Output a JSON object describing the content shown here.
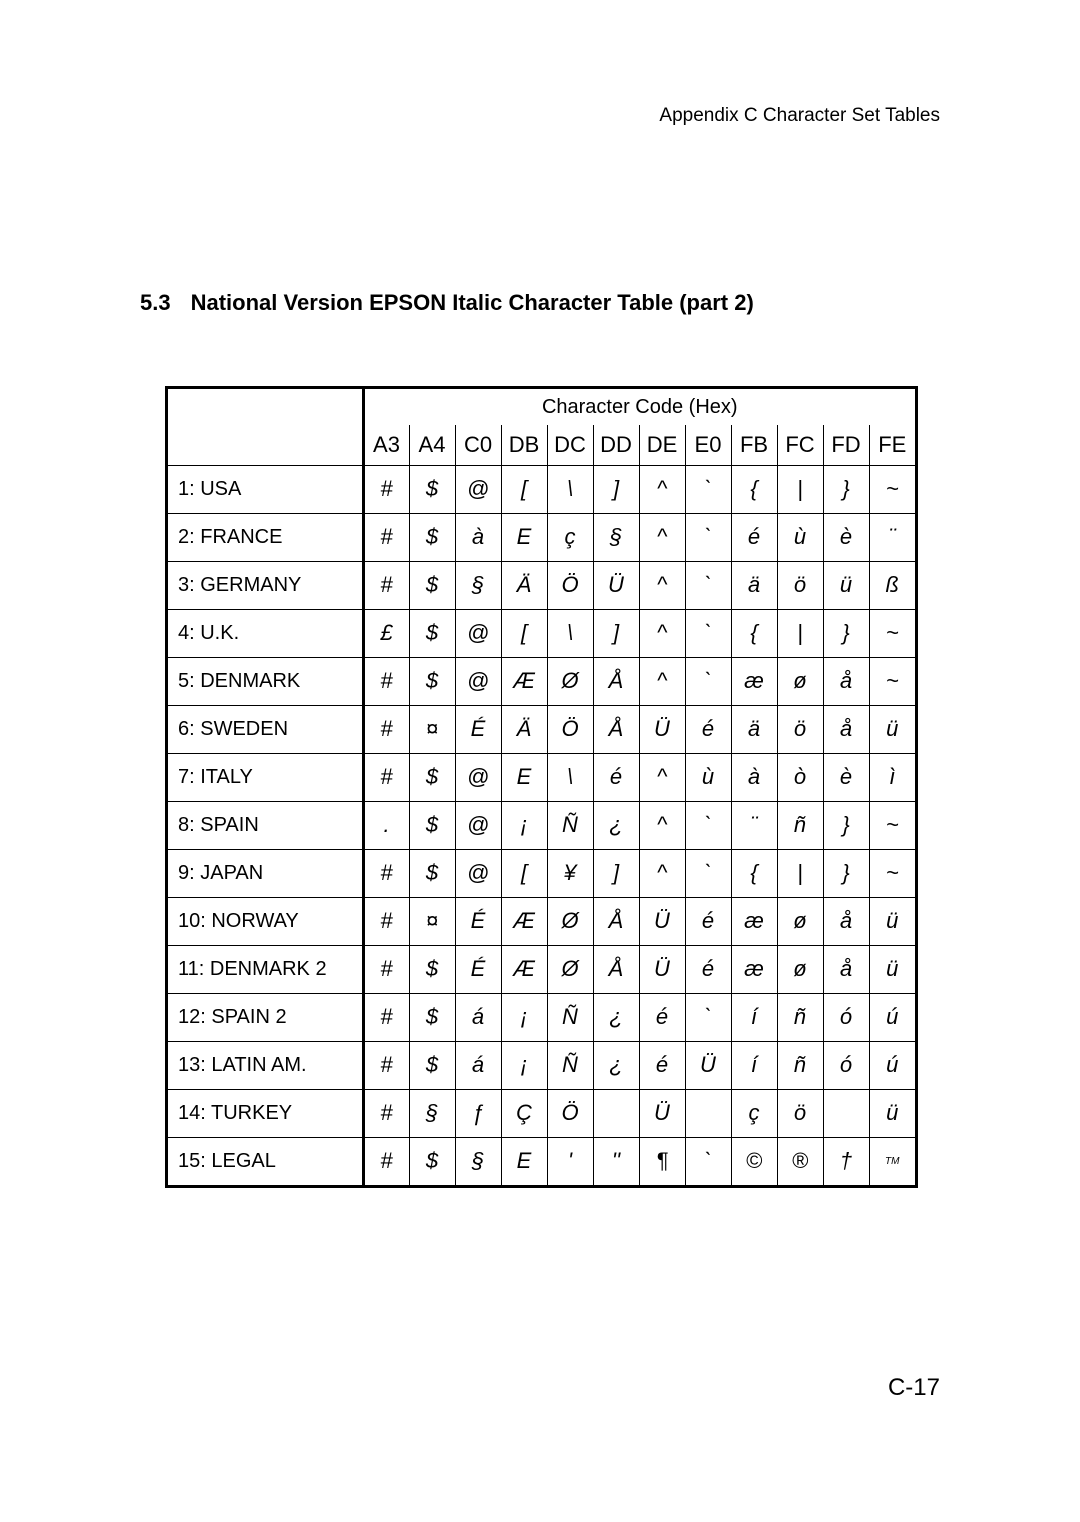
{
  "header": "Appendix C Character Set Tables",
  "section_number": "5.3",
  "section_title": "National Version EPSON Italic Character Table (part 2)",
  "page_number": "C-17",
  "table": {
    "group_header": "Character Code (Hex)",
    "columns": [
      "A3",
      "A4",
      "C0",
      "DB",
      "DC",
      "DD",
      "DE",
      "E0",
      "FB",
      "FC",
      "FD",
      "FE"
    ],
    "rows": [
      {
        "label": "1: USA",
        "cells": [
          "#",
          "$",
          "@",
          "[",
          "\\",
          "]",
          "^",
          "`",
          "{",
          "|",
          "}",
          "~"
        ]
      },
      {
        "label": "2: FRANCE",
        "cells": [
          "#",
          "$",
          "à",
          "E",
          "ç",
          "§",
          "^",
          "`",
          "é",
          "ù",
          "è",
          "¨"
        ]
      },
      {
        "label": "3: GERMANY",
        "cells": [
          "#",
          "$",
          "§",
          "Ä",
          "Ö",
          "Ü",
          "^",
          "`",
          "ä",
          "ö",
          "ü",
          "ß"
        ]
      },
      {
        "label": "4: U.K.",
        "cells": [
          "£",
          "$",
          "@",
          "[",
          "\\",
          "]",
          "^",
          "`",
          "{",
          "|",
          "}",
          "~"
        ]
      },
      {
        "label": "5: DENMARK",
        "cells": [
          "#",
          "$",
          "@",
          "Æ",
          "Ø",
          "Å",
          "^",
          "`",
          "æ",
          "ø",
          "å",
          "~"
        ]
      },
      {
        "label": "6: SWEDEN",
        "cells": [
          "#",
          "¤",
          "É",
          "Ä",
          "Ö",
          "Å",
          "Ü",
          "é",
          "ä",
          "ö",
          "å",
          "ü"
        ]
      },
      {
        "label": "7: ITALY",
        "cells": [
          "#",
          "$",
          "@",
          "E",
          "\\",
          "é",
          "^",
          "ù",
          "à",
          "ò",
          "è",
          "ì"
        ]
      },
      {
        "label": "8: SPAIN",
        "cells": [
          ".",
          "$",
          "@",
          "¡",
          "Ñ",
          "¿",
          "^",
          "`",
          "¨",
          "ñ",
          "}",
          "~"
        ]
      },
      {
        "label": "9: JAPAN",
        "cells": [
          "#",
          "$",
          "@",
          "[",
          "¥",
          "]",
          "^",
          "`",
          "{",
          "|",
          "}",
          "~"
        ]
      },
      {
        "label": "10: NORWAY",
        "cells": [
          "#",
          "¤",
          "É",
          "Æ",
          "Ø",
          "Å",
          "Ü",
          "é",
          "æ",
          "ø",
          "å",
          "ü"
        ]
      },
      {
        "label": "11: DENMARK 2",
        "cells": [
          "#",
          "$",
          "É",
          "Æ",
          "Ø",
          "Å",
          "Ü",
          "é",
          "æ",
          "ø",
          "å",
          "ü"
        ]
      },
      {
        "label": "12: SPAIN 2",
        "cells": [
          "#",
          "$",
          "á",
          "¡",
          "Ñ",
          "¿",
          "é",
          "`",
          "í",
          "ñ",
          "ó",
          "ú"
        ]
      },
      {
        "label": "13: LATIN AM.",
        "cells": [
          "#",
          "$",
          "á",
          "¡",
          "Ñ",
          "¿",
          "é",
          "Ü",
          "í",
          "ñ",
          "ó",
          "ú"
        ]
      },
      {
        "label": "14: TURKEY",
        "cells": [
          "#",
          "§",
          "ƒ",
          "Ç",
          "Ö",
          "",
          "Ü",
          "",
          "ç",
          "ö",
          "",
          "ü"
        ]
      },
      {
        "label": "15: LEGAL",
        "cells": [
          "#",
          "$",
          "§",
          "E",
          "'",
          "''",
          "¶",
          "`",
          "©",
          "®",
          "†",
          "™"
        ]
      }
    ]
  }
}
